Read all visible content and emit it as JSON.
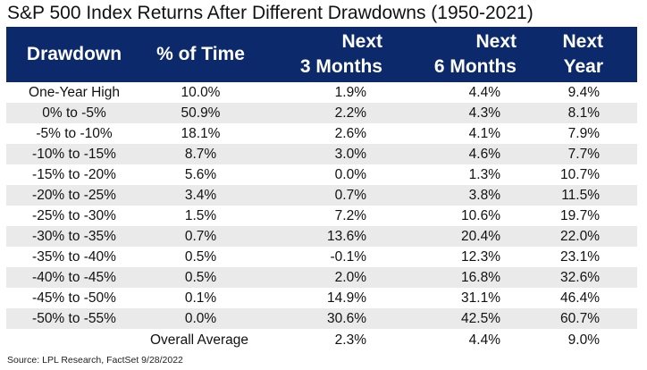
{
  "title": "S&P 500 Index  Returns After Different Drawdowns (1950-2021)",
  "source": "Source: LPL Research, FactSet  9/28/2022",
  "chart_data": {
    "type": "table",
    "title": "S&P 500 Index  Returns After Different Drawdowns (1950-2021)",
    "columns": [
      "Drawdown",
      "% of Time",
      "Next\n3 Months",
      "Next\n6 Months",
      "Next\nYear"
    ],
    "rows": [
      [
        "One-Year High",
        "10.0%",
        "1.9%",
        "4.4%",
        "9.4%"
      ],
      [
        "0% to -5%",
        "50.9%",
        "2.2%",
        "4.3%",
        "8.1%"
      ],
      [
        "-5% to -10%",
        "18.1%",
        "2.6%",
        "4.1%",
        "7.9%"
      ],
      [
        "-10% to -15%",
        "8.7%",
        "3.0%",
        "4.6%",
        "7.7%"
      ],
      [
        "-15% to -20%",
        "5.6%",
        "0.0%",
        "1.3%",
        "10.7%"
      ],
      [
        "-20% to -25%",
        "3.4%",
        "0.7%",
        "3.8%",
        "11.5%"
      ],
      [
        "-25% to -30%",
        "1.5%",
        "7.2%",
        "10.6%",
        "19.7%"
      ],
      [
        "-30% to -35%",
        "0.7%",
        "13.6%",
        "20.4%",
        "22.0%"
      ],
      [
        "-35% to -40%",
        "0.5%",
        "-0.1%",
        "12.3%",
        "23.1%"
      ],
      [
        "-40% to -45%",
        "0.5%",
        "2.0%",
        "16.8%",
        "32.6%"
      ],
      [
        "-45% to -50%",
        "0.1%",
        "14.9%",
        "31.1%",
        "46.4%"
      ],
      [
        "-50% to -55%",
        "0.0%",
        "30.6%",
        "42.5%",
        "60.7%"
      ]
    ],
    "average": {
      "label": "Overall Average",
      "values": [
        "2.3%",
        "4.4%",
        "9.0%"
      ]
    }
  },
  "colors": {
    "header_bg": "#0c2a6b",
    "header_text": "#ffffff",
    "row_shade": "#eaeaea"
  }
}
